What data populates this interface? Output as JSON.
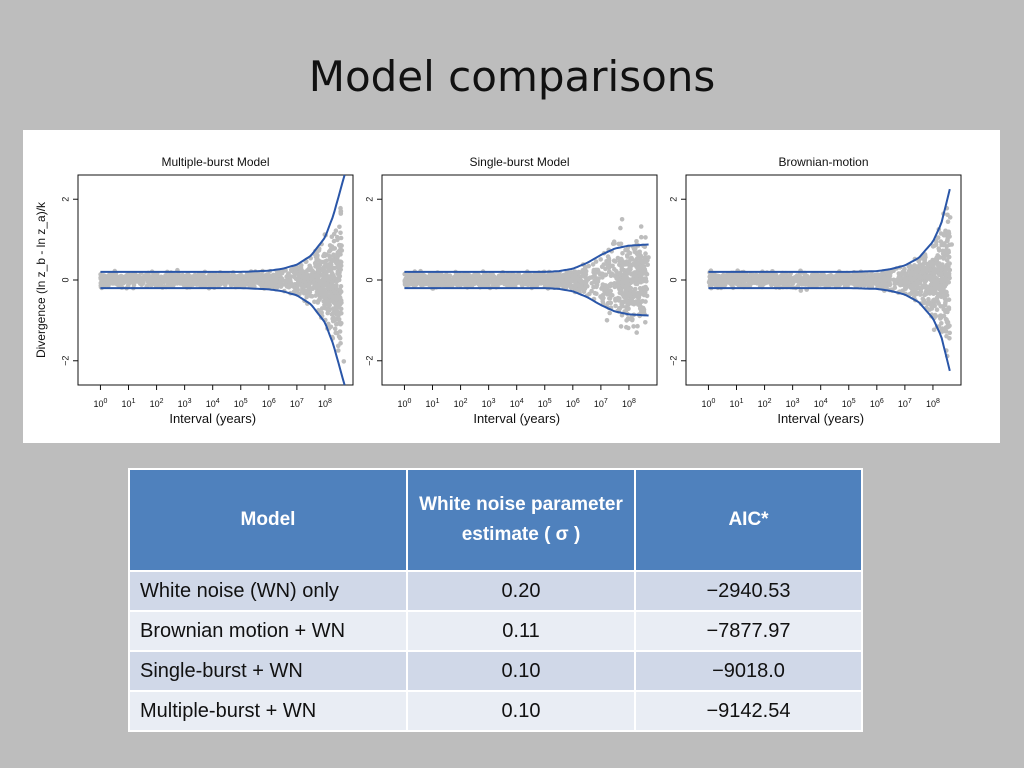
{
  "page": {
    "title": "Model comparisons"
  },
  "chart_data": [
    {
      "type": "scatter",
      "title": "Multiple-burst Model",
      "xlabel": "Interval (years)",
      "ylabel": "Divergence (ln z_b - ln z_a)/k",
      "xscale": "log",
      "x_ticks": [
        "10^0",
        "10^1",
        "10^2",
        "10^3",
        "10^4",
        "10^5",
        "10^6",
        "10^7",
        "10^8"
      ],
      "y_ticks": [
        "-2",
        "0",
        "2"
      ],
      "ylim": [
        -2.6,
        2.6
      ],
      "grid": false,
      "series": [
        {
          "kind": "envelope",
          "x_log10": [
            0,
            3,
            5,
            6,
            6.5,
            7,
            7.5,
            8,
            8.3,
            8.7
          ],
          "upper": [
            0.2,
            0.2,
            0.2,
            0.23,
            0.28,
            0.38,
            0.6,
            1.05,
            1.6,
            2.6
          ],
          "lower": [
            -0.2,
            -0.2,
            -0.2,
            -0.23,
            -0.28,
            -0.38,
            -0.6,
            -1.05,
            -1.6,
            -2.6
          ]
        }
      ]
    },
    {
      "type": "scatter",
      "title": "Single-burst Model",
      "xlabel": "Interval (years)",
      "xscale": "log",
      "x_ticks": [
        "10^0",
        "10^1",
        "10^2",
        "10^3",
        "10^4",
        "10^5",
        "10^6",
        "10^7",
        "10^8"
      ],
      "y_ticks": [
        "-2",
        "0",
        "2"
      ],
      "ylim": [
        -2.6,
        2.6
      ],
      "grid": false,
      "series": [
        {
          "kind": "envelope",
          "x_log10": [
            0,
            3,
            5,
            5.5,
            6,
            6.5,
            7,
            7.5,
            8,
            8.7
          ],
          "upper": [
            0.2,
            0.2,
            0.2,
            0.22,
            0.28,
            0.42,
            0.62,
            0.78,
            0.85,
            0.88
          ],
          "lower": [
            -0.2,
            -0.2,
            -0.2,
            -0.22,
            -0.28,
            -0.42,
            -0.62,
            -0.78,
            -0.85,
            -0.88
          ]
        }
      ]
    },
    {
      "type": "scatter",
      "title": "Brownian-motion",
      "xlabel": "Interval (years)",
      "xscale": "log",
      "x_ticks": [
        "10^0",
        "10^1",
        "10^2",
        "10^3",
        "10^4",
        "10^5",
        "10^6",
        "10^7",
        "10^8"
      ],
      "y_ticks": [
        "-2",
        "0",
        "2"
      ],
      "ylim": [
        -2.6,
        2.6
      ],
      "grid": false,
      "series": [
        {
          "kind": "envelope",
          "x_log10": [
            0,
            3,
            5,
            6,
            6.5,
            7,
            7.5,
            8,
            8.3,
            8.6
          ],
          "upper": [
            0.2,
            0.2,
            0.2,
            0.22,
            0.27,
            0.36,
            0.55,
            0.95,
            1.4,
            2.25
          ],
          "lower": [
            -0.2,
            -0.2,
            -0.2,
            -0.22,
            -0.27,
            -0.36,
            -0.55,
            -0.95,
            -1.4,
            -2.25
          ]
        }
      ]
    }
  ],
  "colors": {
    "curve": "#2a56a8",
    "points": "#bdbdbd",
    "header": "#4f81bd"
  },
  "table": {
    "headers": [
      "Model",
      "White noise parameter estimate ( σ )",
      "AIC*"
    ],
    "rows": [
      [
        "White noise (WN) only",
        "0.20",
        "−2940.53"
      ],
      [
        "Brownian motion + WN",
        "0.11",
        "−7877.97"
      ],
      [
        "Single-burst + WN",
        "0.10",
        "−9018.0"
      ],
      [
        "Multiple-burst + WN",
        "0.10",
        "−9142.54"
      ]
    ]
  }
}
